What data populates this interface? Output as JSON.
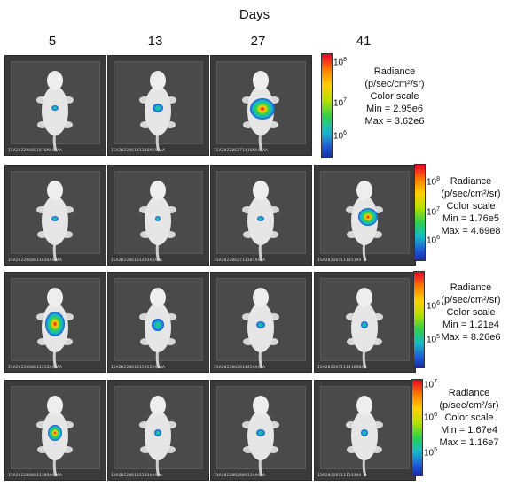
{
  "figure": {
    "title": "Days",
    "days": [
      "5",
      "13",
      "27",
      "41"
    ]
  },
  "rows": [
    {
      "panels": [
        {
          "label": "ISA202206061016MAAAAA"
        },
        {
          "label": "ISA202206141316MAAAAA"
        },
        {
          "label": "ISA202206271416MAAAAA"
        }
      ],
      "legend": {
        "heading": "Radiance",
        "units": "(p/sec/cm²/sr)",
        "scale": "Color scale",
        "min": "Min = 2.95e6",
        "max": "Max = 3.62e6"
      },
      "ticks": [
        {
          "base": "10",
          "exp": "8"
        },
        {
          "base": "10",
          "exp": "7"
        },
        {
          "base": "10",
          "exp": "6"
        }
      ]
    },
    {
      "panels": [
        {
          "label": "ISA202206061303HAAAAA"
        },
        {
          "label": "ISA202206131403AAAAA"
        },
        {
          "label": "ISA202206271330TAAAA"
        },
        {
          "label": "ISA202207111451AA"
        }
      ],
      "legend": {
        "heading": "Radiance",
        "units": "(p/sec/cm²/sr)",
        "scale": "Color scale",
        "min": "Min = 1.76e5",
        "max": "Max = 4.69e8"
      },
      "ticks": [
        {
          "base": "10",
          "exp": "8"
        },
        {
          "base": "10",
          "exp": "7"
        },
        {
          "base": "10",
          "exp": "6"
        }
      ]
    },
    {
      "panels": [
        {
          "label": "ISA202206061325ZAAAAA"
        },
        {
          "label": "ISA202206131505ZAAAAA"
        },
        {
          "label": "ISA202206281445AAAAA"
        },
        {
          "label": "ISA202207111416RBAA"
        }
      ],
      "legend": {
        "heading": "Radiance",
        "units": "(p/sec/cm²/sr)",
        "scale": "Color scale",
        "min": "Min = 1.21e4",
        "max": "Max = 8.26e6"
      },
      "ticks": [
        {
          "base": "10",
          "exp": "6"
        },
        {
          "base": "10",
          "exp": "5"
        }
      ]
    },
    {
      "panels": [
        {
          "label": "ISA202206061330RAAAAA"
        },
        {
          "label": "ISA202206131533AAAAA"
        },
        {
          "label": "ISA202206280952AAAAA"
        },
        {
          "label": "ISA202207111533AA"
        }
      ],
      "legend": {
        "heading": "Radiance",
        "units": "(p/sec/cm²/sr)",
        "scale": "Color scale",
        "min": "Min = 1.67e4",
        "max": "Max = 1.16e7"
      },
      "ticks": [
        {
          "base": "10",
          "exp": "7"
        },
        {
          "base": "10",
          "exp": "6"
        },
        {
          "base": "10",
          "exp": "5"
        }
      ]
    }
  ]
}
